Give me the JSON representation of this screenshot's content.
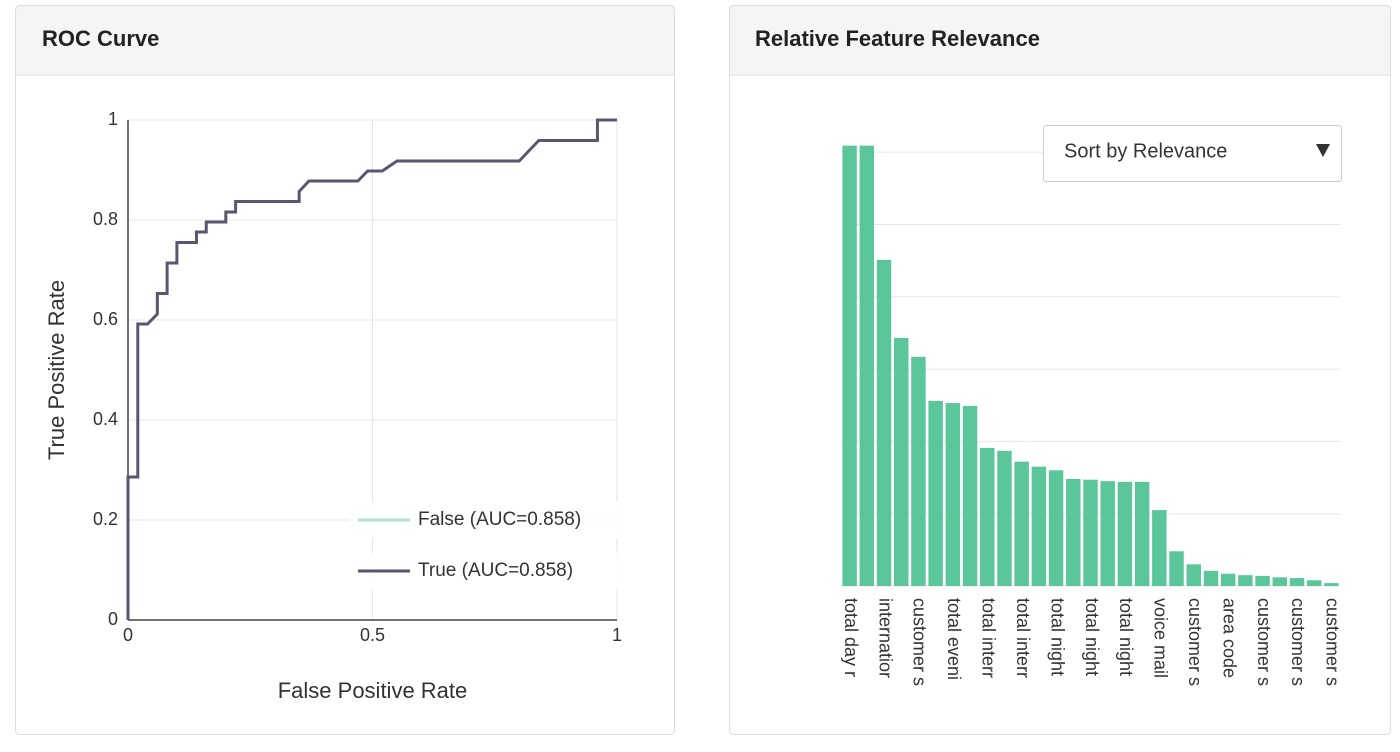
{
  "chart_data": [
    {
      "type": "line",
      "title": "ROC Curve",
      "x_label": "False Positive Rate",
      "y_label": "True Positive Rate",
      "x": [
        0,
        0,
        0.02,
        0.02,
        0.04,
        0.06,
        0.06,
        0.08,
        0.08,
        0.1,
        0.1,
        0.14,
        0.14,
        0.16,
        0.16,
        0.2,
        0.2,
        0.22,
        0.22,
        0.35,
        0.35,
        0.37,
        0.47,
        0.49,
        0.52,
        0.55,
        0.8,
        0.84,
        0.96,
        0.96,
        1
      ],
      "series": [
        {
          "name": "False (AUC=0.858)",
          "color": "#66c2a5",
          "visible": false
        },
        {
          "name": "True (AUC=0.858)",
          "color": "#5b5670",
          "values": [
            0,
            0.286,
            0.286,
            0.592,
            0.592,
            0.612,
            0.653,
            0.653,
            0.714,
            0.714,
            0.755,
            0.755,
            0.776,
            0.776,
            0.796,
            0.796,
            0.816,
            0.816,
            0.837,
            0.837,
            0.857,
            0.878,
            0.878,
            0.898,
            0.898,
            0.918,
            0.918,
            0.959,
            0.959,
            1,
            1
          ]
        }
      ],
      "xlim": [
        0,
        1
      ],
      "ylim": [
        0,
        1
      ],
      "xticks": [
        0,
        0.5,
        1
      ],
      "yticks": [
        0,
        0.2,
        0.4,
        0.6,
        0.8,
        1
      ],
      "grid": true,
      "legend": "lower right"
    },
    {
      "type": "bar",
      "title": "Relative Feature Relevance",
      "dropdown": "Sort by Relevance",
      "categories": [
        "total day r",
        null,
        "internatior",
        null,
        "customer s",
        null,
        "total eveni",
        null,
        "total interr",
        null,
        "total interr",
        null,
        "total night",
        null,
        "total night",
        null,
        "total night",
        null,
        "voice mail",
        null,
        "customer s",
        null,
        "area code",
        null,
        "customer s",
        null,
        "customer s",
        null,
        "customer s"
      ],
      "values": [
        6.09,
        6.09,
        4.51,
        3.43,
        3.17,
        2.56,
        2.53,
        2.49,
        1.91,
        1.87,
        1.72,
        1.65,
        1.6,
        1.48,
        1.47,
        1.45,
        1.44,
        1.44,
        1.05,
        0.48,
        0.3,
        0.21,
        0.17,
        0.15,
        0.14,
        0.12,
        0.11,
        0.08,
        0.04
      ],
      "color": "#5cc69b",
      "ylim": [
        0,
        6.5
      ],
      "yticks": [
        0,
        1,
        2,
        3,
        4,
        5,
        6
      ],
      "grid": true,
      "tick_labels": false
    }
  ]
}
